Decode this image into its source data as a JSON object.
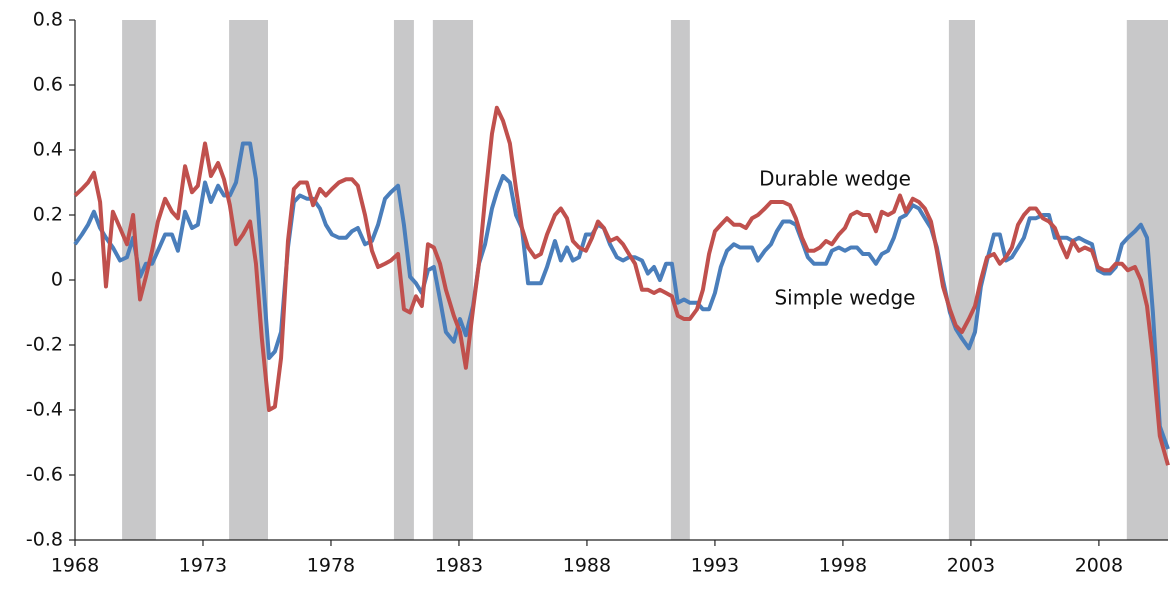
{
  "chart_data": {
    "type": "line",
    "x": [
      1968.0,
      1968.27,
      1968.51,
      1968.74,
      1968.98,
      1969.21,
      1969.48,
      1969.76,
      1970.03,
      1970.27,
      1970.54,
      1970.77,
      1971.01,
      1971.24,
      1971.52,
      1971.79,
      1972.02,
      1972.3,
      1972.57,
      1972.8,
      1973.08,
      1973.31,
      1973.59,
      1973.82,
      1974.05,
      1974.29,
      1974.56,
      1974.84,
      1975.07,
      1975.3,
      1975.58,
      1975.81,
      1976.05,
      1976.32,
      1976.55,
      1976.79,
      1977.06,
      1977.3,
      1977.57,
      1977.8,
      1978.04,
      1978.31,
      1978.59,
      1978.82,
      1979.05,
      1979.33,
      1979.6,
      1979.84,
      1980.11,
      1980.34,
      1980.62,
      1980.85,
      1981.09,
      1981.32,
      1981.55,
      1981.79,
      1982.02,
      1982.26,
      1982.49,
      1982.8,
      1983.04,
      1983.27,
      1983.55,
      1983.78,
      1984.02,
      1984.29,
      1984.48,
      1984.72,
      1984.99,
      1985.23,
      1985.46,
      1985.7,
      1985.97,
      1986.2,
      1986.44,
      1986.75,
      1986.98,
      1987.22,
      1987.45,
      1987.69,
      1987.96,
      1988.2,
      1988.43,
      1988.66,
      1988.9,
      1989.17,
      1989.41,
      1989.64,
      1989.88,
      1990.15,
      1990.38,
      1990.62,
      1990.85,
      1991.09,
      1991.32,
      1991.55,
      1991.79,
      1992.02,
      1992.3,
      1992.53,
      1992.77,
      1993.0,
      1993.23,
      1993.47,
      1993.74,
      1993.98,
      1994.21,
      1994.45,
      1994.68,
      1994.95,
      1995.19,
      1995.42,
      1995.66,
      1995.93,
      1996.16,
      1996.4,
      1996.63,
      1996.87,
      1997.1,
      1997.34,
      1997.57,
      1997.84,
      1998.08,
      1998.31,
      1998.55,
      1998.78,
      1999.02,
      1999.29,
      1999.52,
      1999.76,
      1999.99,
      2000.23,
      2000.46,
      2000.73,
      2000.97,
      2001.2,
      2001.44,
      2001.67,
      2001.91,
      2002.18,
      2002.41,
      2002.65,
      2002.92,
      2003.16,
      2003.39,
      2003.63,
      2003.9,
      2004.13,
      2004.37,
      2004.6,
      2004.84,
      2005.07,
      2005.3,
      2005.54,
      2005.81,
      2006.05,
      2006.28,
      2006.52,
      2006.75,
      2006.98,
      2007.22,
      2007.45,
      2007.73,
      2007.96,
      2008.2,
      2008.43,
      2008.66,
      2008.9,
      2009.13,
      2009.41,
      2009.64,
      2009.88,
      2010.11,
      2010.38,
      2010.7
    ],
    "series": [
      {
        "name": "Simple wedge",
        "color": "#4a7ebb",
        "values": [
          0.11,
          0.14,
          0.17,
          0.21,
          0.16,
          0.13,
          0.1,
          0.06,
          0.07,
          0.13,
          0.01,
          0.05,
          0.05,
          0.09,
          0.14,
          0.14,
          0.09,
          0.21,
          0.16,
          0.17,
          0.3,
          0.24,
          0.29,
          0.26,
          0.26,
          0.3,
          0.42,
          0.42,
          0.31,
          0.05,
          -0.24,
          -0.22,
          -0.16,
          0.1,
          0.24,
          0.26,
          0.25,
          0.25,
          0.22,
          0.17,
          0.14,
          0.13,
          0.13,
          0.15,
          0.16,
          0.11,
          0.12,
          0.17,
          0.25,
          0.27,
          0.29,
          0.17,
          0.01,
          -0.01,
          -0.04,
          0.03,
          0.04,
          -0.06,
          -0.16,
          -0.19,
          -0.12,
          -0.17,
          -0.08,
          0.05,
          0.11,
          0.22,
          0.27,
          0.32,
          0.3,
          0.2,
          0.16,
          -0.01,
          -0.01,
          -0.01,
          0.04,
          0.12,
          0.06,
          0.1,
          0.06,
          0.07,
          0.14,
          0.14,
          0.17,
          0.16,
          0.11,
          0.07,
          0.06,
          0.07,
          0.07,
          0.06,
          0.02,
          0.04,
          0.0,
          0.05,
          0.05,
          -0.07,
          -0.06,
          -0.07,
          -0.07,
          -0.09,
          -0.09,
          -0.04,
          0.04,
          0.09,
          0.11,
          0.1,
          0.1,
          0.1,
          0.06,
          0.09,
          0.11,
          0.15,
          0.18,
          0.18,
          0.17,
          0.12,
          0.07,
          0.05,
          0.05,
          0.05,
          0.09,
          0.1,
          0.09,
          0.1,
          0.1,
          0.08,
          0.08,
          0.05,
          0.08,
          0.09,
          0.13,
          0.19,
          0.2,
          0.23,
          0.22,
          0.19,
          0.16,
          0.1,
          0.0,
          -0.1,
          -0.15,
          -0.18,
          -0.21,
          -0.16,
          -0.02,
          0.06,
          0.14,
          0.14,
          0.06,
          0.07,
          0.1,
          0.13,
          0.19,
          0.19,
          0.2,
          0.2,
          0.13,
          0.13,
          0.13,
          0.12,
          0.13,
          0.12,
          0.11,
          0.03,
          0.02,
          0.02,
          0.04,
          0.11,
          0.13,
          0.15,
          0.17,
          0.13,
          -0.1,
          -0.45,
          -0.52
        ]
      },
      {
        "name": "Durable wedge",
        "color": "#c0504d",
        "values": [
          0.26,
          0.28,
          0.3,
          0.33,
          0.24,
          -0.02,
          0.21,
          0.16,
          0.11,
          0.2,
          -0.06,
          0.01,
          0.09,
          0.18,
          0.25,
          0.21,
          0.19,
          0.35,
          0.27,
          0.29,
          0.42,
          0.32,
          0.36,
          0.31,
          0.23,
          0.11,
          0.14,
          0.18,
          0.05,
          -0.18,
          -0.4,
          -0.39,
          -0.24,
          0.12,
          0.28,
          0.3,
          0.3,
          0.23,
          0.28,
          0.26,
          0.28,
          0.3,
          0.31,
          0.31,
          0.29,
          0.2,
          0.09,
          0.04,
          0.05,
          0.06,
          0.08,
          -0.09,
          -0.1,
          -0.05,
          -0.08,
          0.11,
          0.1,
          0.05,
          -0.03,
          -0.11,
          -0.16,
          -0.27,
          -0.09,
          0.05,
          0.25,
          0.45,
          0.53,
          0.49,
          0.42,
          0.28,
          0.16,
          0.1,
          0.07,
          0.08,
          0.14,
          0.2,
          0.22,
          0.19,
          0.12,
          0.1,
          0.09,
          0.13,
          0.18,
          0.16,
          0.12,
          0.13,
          0.11,
          0.08,
          0.05,
          -0.03,
          -0.03,
          -0.04,
          -0.03,
          -0.04,
          -0.05,
          -0.11,
          -0.12,
          -0.12,
          -0.09,
          -0.03,
          0.08,
          0.15,
          0.17,
          0.19,
          0.17,
          0.17,
          0.16,
          0.19,
          0.2,
          0.22,
          0.24,
          0.24,
          0.24,
          0.23,
          0.19,
          0.13,
          0.09,
          0.09,
          0.1,
          0.12,
          0.11,
          0.14,
          0.16,
          0.2,
          0.21,
          0.2,
          0.2,
          0.15,
          0.21,
          0.2,
          0.21,
          0.26,
          0.21,
          0.25,
          0.24,
          0.22,
          0.18,
          0.09,
          -0.02,
          -0.09,
          -0.14,
          -0.16,
          -0.12,
          -0.08,
          0.0,
          0.07,
          0.08,
          0.05,
          0.07,
          0.1,
          0.17,
          0.2,
          0.22,
          0.22,
          0.19,
          0.18,
          0.16,
          0.11,
          0.07,
          0.12,
          0.09,
          0.1,
          0.09,
          0.04,
          0.03,
          0.03,
          0.05,
          0.05,
          0.03,
          0.04,
          0.0,
          -0.08,
          -0.24,
          -0.48,
          -0.57
        ]
      }
    ],
    "shaded_spans": [
      [
        1969.84,
        1971.16
      ],
      [
        1974.02,
        1975.54
      ],
      [
        1980.46,
        1981.24
      ],
      [
        1981.98,
        1983.55
      ],
      [
        1991.28,
        1992.02
      ],
      [
        2002.14,
        2003.16
      ],
      [
        2009.09,
        2010.7
      ]
    ],
    "shade_color": "#c8c8c9",
    "xlim": [
      1968,
      2010.7
    ],
    "xticks": [
      1968,
      1973,
      1978,
      1983,
      1988,
      1993,
      1998,
      2003,
      2008
    ],
    "ylim": [
      -0.8,
      0.8
    ],
    "yticks": [
      -0.8,
      -0.6,
      -0.4,
      -0.2,
      0,
      0.2,
      0.4,
      0.6,
      0.8
    ],
    "grid": false
  }
}
